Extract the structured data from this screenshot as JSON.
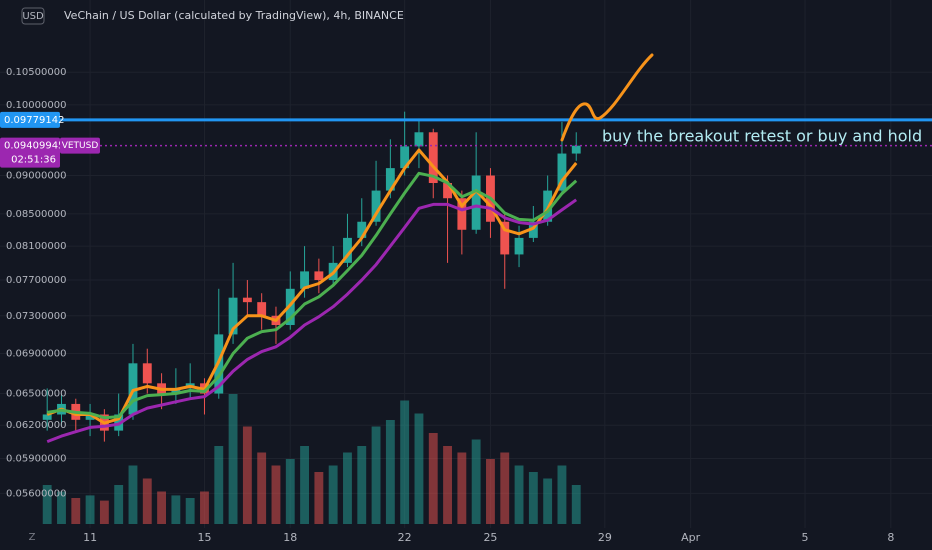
{
  "chart_data": {
    "type": "candlestick",
    "title": "VeChain / US Dollar (calculated by TradingView), 4h, BINANCE",
    "currency": "USD",
    "annotation": "buy the breakout retest or buy and hold",
    "log_scale": true,
    "grid": true,
    "up_color": "#26a69a",
    "down_color": "#ef5350",
    "x": [
      9.5,
      10,
      10.5,
      11,
      11.5,
      12,
      12.5,
      13,
      13.5,
      14,
      14.5,
      15,
      15.5,
      16,
      16.5,
      17,
      17.5,
      18,
      18.5,
      19,
      19.5,
      20,
      20.5,
      21,
      21.5,
      22,
      22.5,
      23,
      23.5,
      24,
      24.5,
      25,
      25.5,
      26,
      26.5,
      27,
      27.5,
      28
    ],
    "open": [
      0.0625,
      0.063,
      0.064,
      0.0625,
      0.063,
      0.0615,
      0.063,
      0.068,
      0.066,
      0.065,
      0.0655,
      0.066,
      0.065,
      0.071,
      0.075,
      0.0745,
      0.073,
      0.072,
      0.076,
      0.078,
      0.077,
      0.079,
      0.082,
      0.084,
      0.088,
      0.091,
      0.094,
      0.096,
      0.089,
      0.087,
      0.083,
      0.09,
      0.084,
      0.08,
      0.082,
      0.084,
      0.088,
      0.093
    ],
    "high": [
      0.0655,
      0.065,
      0.0645,
      0.064,
      0.0635,
      0.065,
      0.07,
      0.0695,
      0.067,
      0.0675,
      0.068,
      0.0665,
      0.076,
      0.079,
      0.077,
      0.0755,
      0.074,
      0.078,
      0.081,
      0.0795,
      0.081,
      0.085,
      0.087,
      0.092,
      0.095,
      0.099,
      0.098,
      0.0965,
      0.09,
      0.088,
      0.096,
      0.091,
      0.085,
      0.0835,
      0.086,
      0.09,
      0.0975,
      0.096
    ],
    "low": [
      0.0615,
      0.062,
      0.0615,
      0.061,
      0.0605,
      0.061,
      0.0625,
      0.065,
      0.0635,
      0.064,
      0.0645,
      0.063,
      0.0645,
      0.07,
      0.073,
      0.0715,
      0.07,
      0.0715,
      0.075,
      0.0755,
      0.0765,
      0.0785,
      0.081,
      0.0835,
      0.087,
      0.09,
      0.091,
      0.087,
      0.079,
      0.08,
      0.0825,
      0.082,
      0.076,
      0.0785,
      0.0815,
      0.0835,
      0.0875,
      0.092
    ],
    "close": [
      0.063,
      0.064,
      0.0625,
      0.063,
      0.0615,
      0.063,
      0.068,
      0.066,
      0.065,
      0.0655,
      0.066,
      0.065,
      0.071,
      0.075,
      0.0745,
      0.073,
      0.072,
      0.076,
      0.078,
      0.077,
      0.079,
      0.082,
      0.084,
      0.088,
      0.091,
      0.094,
      0.096,
      0.089,
      0.087,
      0.083,
      0.09,
      0.084,
      0.08,
      0.082,
      0.084,
      0.088,
      0.093,
      0.0941
    ],
    "volume": [
      30,
      25,
      20,
      22,
      18,
      30,
      45,
      35,
      25,
      22,
      20,
      25,
      60,
      100,
      75,
      55,
      45,
      50,
      60,
      40,
      45,
      55,
      60,
      75,
      80,
      95,
      85,
      70,
      60,
      55,
      65,
      50,
      55,
      45,
      40,
      35,
      45,
      30
    ],
    "series": [
      {
        "color": "#f7931a",
        "values": [
          0.063,
          0.0635,
          0.063,
          0.063,
          0.0622,
          0.0626,
          0.0653,
          0.0657,
          0.0654,
          0.0654,
          0.0657,
          0.0654,
          0.0682,
          0.0716,
          0.073,
          0.073,
          0.0725,
          0.0742,
          0.0761,
          0.0766,
          0.0778,
          0.0799,
          0.082,
          0.085,
          0.088,
          0.091,
          0.0935,
          0.0912,
          0.0891,
          0.086,
          0.088,
          0.086,
          0.083,
          0.0825,
          0.0832,
          0.0856,
          0.0893,
          0.0917
        ]
      },
      {
        "color": "#4caf50",
        "values": [
          0.0632,
          0.0634,
          0.0632,
          0.0631,
          0.0627,
          0.0628,
          0.0643,
          0.0648,
          0.0649,
          0.065,
          0.0653,
          0.0652,
          0.0667,
          0.069,
          0.0706,
          0.0713,
          0.0715,
          0.0727,
          0.0743,
          0.0751,
          0.0764,
          0.0781,
          0.0799,
          0.0823,
          0.085,
          0.0877,
          0.0903,
          0.0899,
          0.089,
          0.0872,
          0.088,
          0.087,
          0.0851,
          0.0843,
          0.0842,
          0.0853,
          0.0876,
          0.0893
        ]
      },
      {
        "color": "#9c27b0",
        "values": [
          0.0605,
          0.061,
          0.0614,
          0.0618,
          0.0619,
          0.0621,
          0.063,
          0.0636,
          0.0639,
          0.0642,
          0.0645,
          0.0647,
          0.0657,
          0.0672,
          0.0684,
          0.0692,
          0.0697,
          0.0707,
          0.072,
          0.0729,
          0.074,
          0.0754,
          0.077,
          0.0788,
          0.081,
          0.0833,
          0.0857,
          0.0862,
          0.0862,
          0.0855,
          0.086,
          0.0857,
          0.0845,
          0.0839,
          0.0837,
          0.0842,
          0.0855,
          0.0868
        ]
      }
    ],
    "hline": 0.09779142,
    "last_price": 0.09409945,
    "symbol": "VETUSD",
    "countdown": "02:51:36",
    "xlim": [
      7.85,
      40.44
    ],
    "ylim": [
      0.0535,
      0.112
    ],
    "xticks": [
      11,
      15,
      18,
      22,
      25,
      29,
      {
        "value": 32,
        "label": "Apr"
      },
      {
        "value": 36,
        "label": "5"
      },
      {
        "value": 39,
        "label": "8"
      }
    ],
    "yticks": [
      {
        "value": 0.105,
        "label": "0.10500000"
      },
      {
        "value": 0.1,
        "label": "0.10000000"
      },
      {
        "value": 0.09,
        "label": "0.09000000"
      },
      {
        "value": 0.085,
        "label": "0.08500000"
      },
      {
        "value": 0.081,
        "label": "0.08100000"
      },
      {
        "value": 0.077,
        "label": "0.07700000"
      },
      {
        "value": 0.073,
        "label": "0.07300000"
      },
      {
        "value": 0.069,
        "label": "0.06900000"
      },
      {
        "value": 0.065,
        "label": "0.06500000"
      },
      {
        "value": 0.062,
        "label": "0.06200000"
      },
      {
        "value": 0.059,
        "label": "0.05900000"
      },
      {
        "value": 0.056,
        "label": "0.05600000"
      }
    ]
  }
}
